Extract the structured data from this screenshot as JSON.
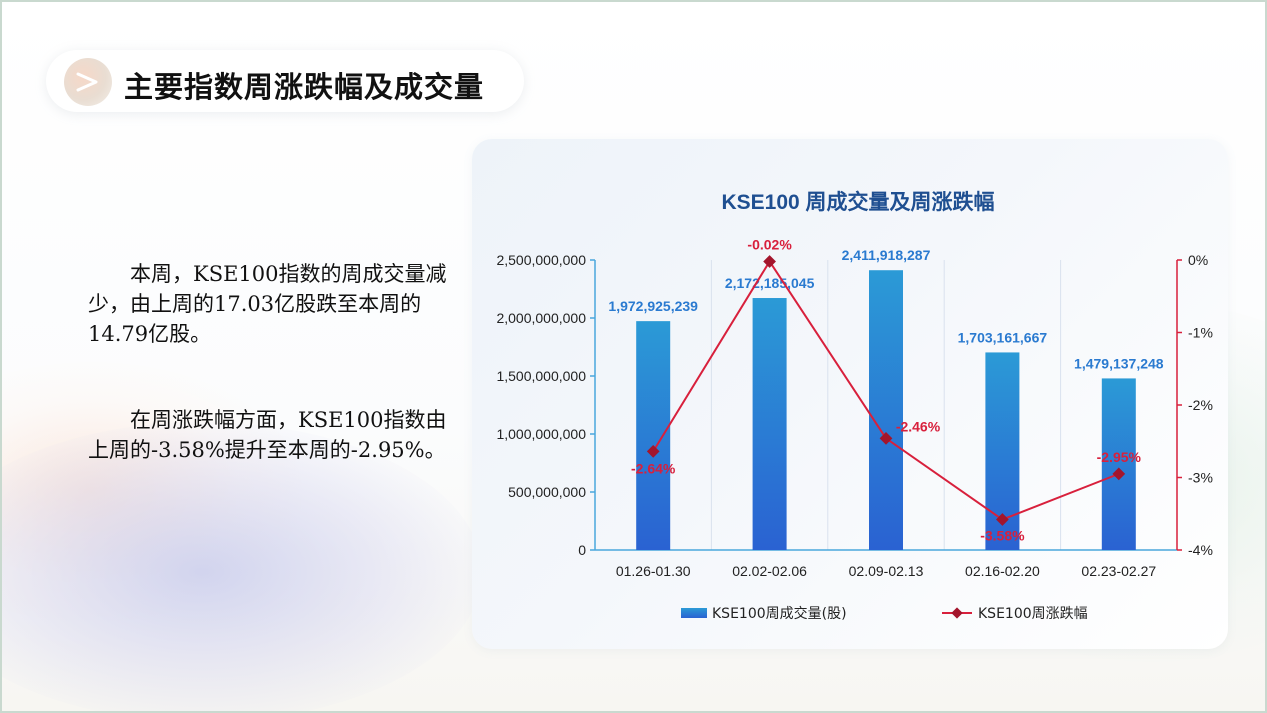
{
  "header": {
    "title": "主要指数周涨跌幅及成交量"
  },
  "text": {
    "p1": "本周，KSE100指数的周成交量减少，由上周的17.03亿股跌至本周的14.79亿股。",
    "p2": "在周涨跌幅方面，KSE100指数由上周的-3.58%提升至本周的-2.95%。"
  },
  "chart_data": {
    "type": "bar",
    "title": "KSE100 周成交量及周涨跌幅",
    "categories": [
      "01.26-01.30",
      "02.02-02.06",
      "02.09-02.13",
      "02.16-02.20",
      "02.23-02.27"
    ],
    "series": [
      {
        "name": "KSE100周成交量(股)",
        "type": "bar",
        "axis": "left",
        "values": [
          1972925239,
          2172185045,
          2411918287,
          1703161667,
          1479137248
        ],
        "labels": [
          "1,972,925,239",
          "2,172,185,045",
          "2,411,918,287",
          "1,703,161,667",
          "1,479,137,248"
        ]
      },
      {
        "name": "KSE100周涨跌幅",
        "type": "line",
        "axis": "right",
        "values": [
          -2.64,
          -0.02,
          -2.46,
          -3.58,
          -2.95
        ],
        "labels": [
          "-2.64%",
          "-0.02%",
          "-2.46%",
          "-3.58%",
          "-2.95%"
        ]
      }
    ],
    "y_left": {
      "ylim": [
        0,
        2500000000
      ],
      "ticks": [
        0,
        500000000,
        1000000000,
        1500000000,
        2000000000,
        2500000000
      ],
      "tick_labels": [
        "0",
        "500,000,000",
        "1,000,000,000",
        "1,500,000,000",
        "2,000,000,000",
        "2,500,000,000"
      ]
    },
    "y_right": {
      "ylim": [
        -4,
        0
      ],
      "ticks": [
        0,
        -1,
        -2,
        -3,
        -4
      ],
      "tick_labels": [
        "0%",
        "-1%",
        "-2%",
        "-3%",
        "-4%"
      ]
    },
    "legend_position": "bottom",
    "colors": {
      "bar_top": "#2b9ad6",
      "bar_bottom": "#2a62d2",
      "bar_label": "#2a7ad0",
      "line": "#d8203c",
      "marker": "#a3152c",
      "title": "#1f4f91"
    }
  }
}
